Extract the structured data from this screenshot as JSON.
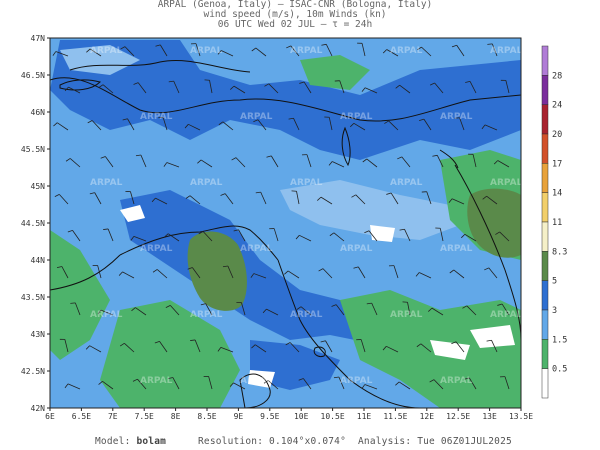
{
  "header": {
    "line1": "ARPAL (Genoa, Italy)  —  ISAC-CNR (Bologna, Italy)",
    "line2": "wind speed (m/s), 10m Winds (kn)",
    "line3": "06 UTC Wed 02 JUL  —  τ = 24h"
  },
  "map": {
    "lat_ticks": [
      "47N",
      "46.5N",
      "46N",
      "45.5N",
      "45N",
      "44.5N",
      "44N",
      "43.5N",
      "43N",
      "42.5N",
      "42N"
    ],
    "lon_ticks": [
      "6E",
      "6.5E",
      "7E",
      "7.5E",
      "8E",
      "8.5E",
      "9E",
      "9.5E",
      "10E",
      "10.5E",
      "11E",
      "11.5E",
      "12E",
      "12.5E",
      "13E",
      "13.5E"
    ],
    "lat_range": [
      42,
      47
    ],
    "lon_range": [
      6,
      13.5
    ],
    "watermark": "ARPAL"
  },
  "colorbar": {
    "labels": [
      "0.5",
      "1.5",
      "3",
      "5",
      "8.3",
      "11",
      "14",
      "17",
      "20",
      "24",
      "28"
    ],
    "colors": [
      "#ffffff",
      "#4db36b",
      "#62a8e8",
      "#2e6fd1",
      "#5a8a4a",
      "#f5f0c8",
      "#f2cf6a",
      "#e8a23a",
      "#d2512a",
      "#a8232f",
      "#7a2e9c",
      "#b07cd6"
    ]
  },
  "footer": {
    "model_label": "Model:",
    "model_value": "bolam",
    "resolution_label": "Resolution:",
    "resolution_value": "0.104°x0.074°",
    "analysis_label": "Analysis:",
    "analysis_value": "Tue 06Z01JUL2025"
  }
}
